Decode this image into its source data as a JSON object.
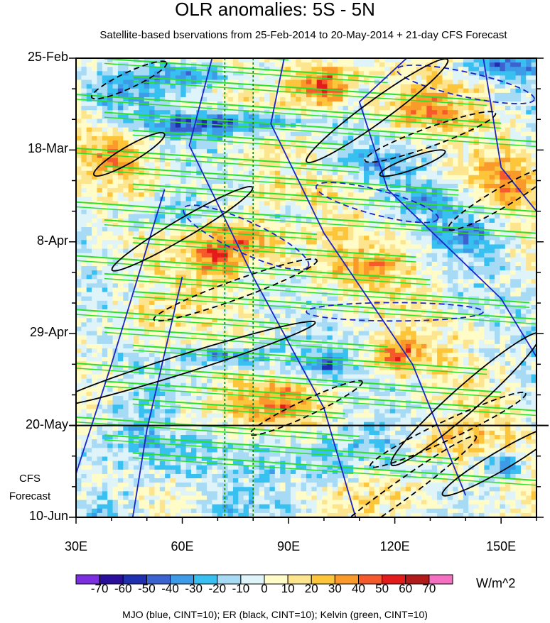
{
  "chart_data": {
    "type": "heatmap",
    "title": "OLR anomalies: 5S - 5N",
    "subtitle": "Satellite-based bservations from 25-Feb-2014 to 20-May-2014 + 21-day CFS Forecast",
    "x_ticks": [
      {
        "value": 30,
        "label": "30E"
      },
      {
        "value": 60,
        "label": "60E"
      },
      {
        "value": 90,
        "label": "90E"
      },
      {
        "value": 120,
        "label": "120E"
      },
      {
        "value": 150,
        "label": "150E"
      }
    ],
    "xlim": [
      30,
      160
    ],
    "y_ticks": [
      {
        "day": 0,
        "label": "25-Feb"
      },
      {
        "day": 21,
        "label": "18-Mar"
      },
      {
        "day": 42,
        "label": "8-Apr"
      },
      {
        "day": 63,
        "label": "29-Apr"
      },
      {
        "day": 84,
        "label": "20-May"
      },
      {
        "day": 105,
        "label": "10-Jun"
      }
    ],
    "forecast_start_day": 84,
    "forecast_label": "CFS Forecast",
    "reference_lines_lon": [
      72,
      80
    ],
    "colorbar": {
      "units": "W/m^2",
      "levels": [
        "-70",
        "-60",
        "-50",
        "-40",
        "-30",
        "-20",
        "-10",
        "0",
        "10",
        "20",
        "30",
        "40",
        "50",
        "60",
        "70"
      ],
      "colors": [
        "#7b2fe0",
        "#2a0f9c",
        "#1f2fb0",
        "#3c62cf",
        "#3d9be8",
        "#37c0f0",
        "#a7daf5",
        "#dff4f8",
        "#fffcc7",
        "#fde48e",
        "#fcc53a",
        "#f99a2b",
        "#f6592b",
        "#e31b1b",
        "#b31b1b",
        "#f570c0"
      ]
    },
    "contour_legend": "MJO (blue, CINT=10); ER (black, CINT=10); Kelvin (green, CINT=10)",
    "series": [
      {
        "name": "MJO",
        "color": "#1a24c8"
      },
      {
        "name": "ER",
        "color": "#000000"
      },
      {
        "name": "Kelvin",
        "color": "#2ee02e"
      }
    ]
  }
}
